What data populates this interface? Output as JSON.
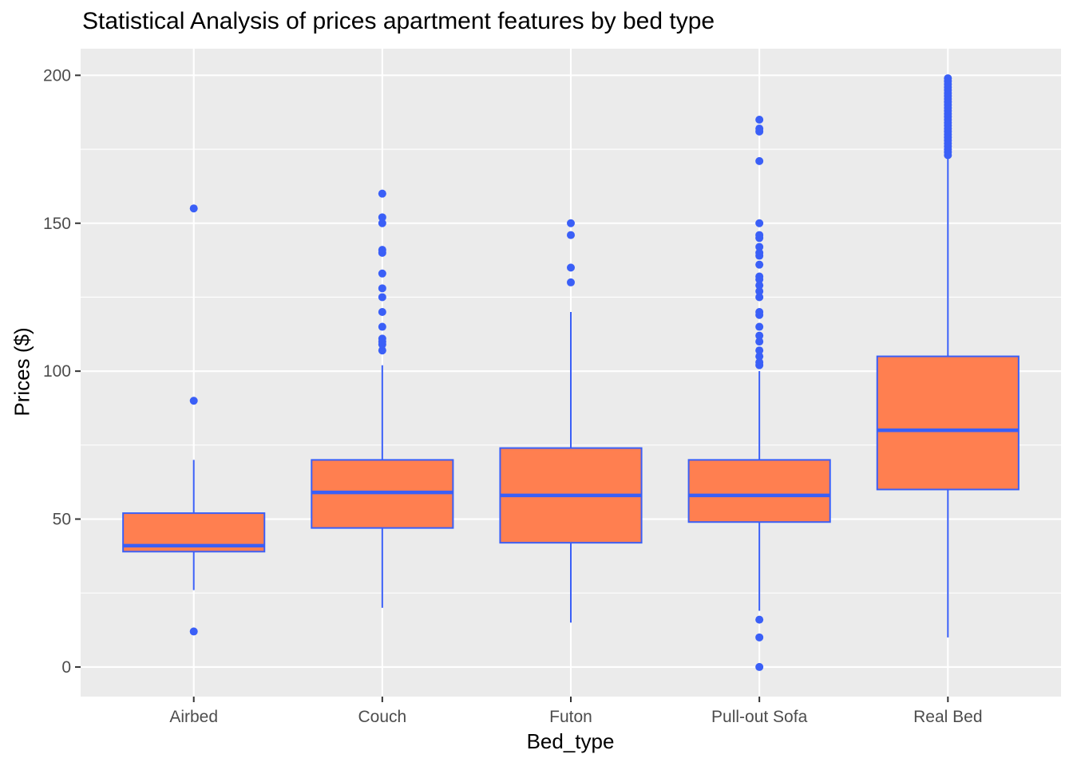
{
  "chart_data": {
    "type": "boxplot",
    "title": "Statistical Analysis of prices apartment features by bed type",
    "xlabel": "Bed_type",
    "ylabel": "Prices ($)",
    "ylim": [
      -10,
      209
    ],
    "yticks": [
      0,
      50,
      100,
      150,
      200
    ],
    "grid": true,
    "legend": "none",
    "colors": {
      "panel_background": "#EBEBEB",
      "grid_major": "#FFFFFF",
      "box_fill": "#FF7F50",
      "box_outline": "#3A5FF7",
      "outlier": "#3A5FF7",
      "tick_text": "#4D4D4D"
    },
    "categories": [
      "Airbed",
      "Couch",
      "Futon",
      "Pull-out Sofa",
      "Real Bed"
    ],
    "boxes": [
      {
        "category": "Airbed",
        "whisker_low": 26,
        "q1": 39,
        "median": 41,
        "q3": 52,
        "whisker_high": 70,
        "outliers": [
          12,
          90,
          155
        ]
      },
      {
        "category": "Couch",
        "whisker_low": 20,
        "q1": 47,
        "median": 59,
        "q3": 70,
        "whisker_high": 102,
        "outliers": [
          107,
          109,
          110,
          111,
          115,
          120,
          125,
          128,
          133,
          140,
          141,
          150,
          152,
          160
        ]
      },
      {
        "category": "Futon",
        "whisker_low": 15,
        "q1": 42,
        "median": 58,
        "q3": 74,
        "whisker_high": 120,
        "outliers": [
          130,
          135,
          146,
          150
        ]
      },
      {
        "category": "Pull-out Sofa",
        "whisker_low": 19,
        "q1": 49,
        "median": 58,
        "q3": 70,
        "whisker_high": 100,
        "outliers": [
          0,
          10,
          16,
          102,
          103,
          105,
          107,
          110,
          112,
          115,
          119,
          120,
          125,
          127,
          129,
          131,
          132,
          136,
          139,
          140,
          142,
          145,
          146,
          150,
          171,
          181,
          182,
          185
        ]
      },
      {
        "category": "Real Bed",
        "whisker_low": 10,
        "q1": 60,
        "median": 80,
        "q3": 105,
        "whisker_high": 172,
        "outliers": [
          173,
          174,
          175,
          176,
          177,
          178,
          179,
          180,
          181,
          182,
          183,
          184,
          185,
          186,
          187,
          188,
          189,
          190,
          191,
          192,
          193,
          194,
          195,
          196,
          197,
          198,
          199
        ]
      }
    ]
  }
}
